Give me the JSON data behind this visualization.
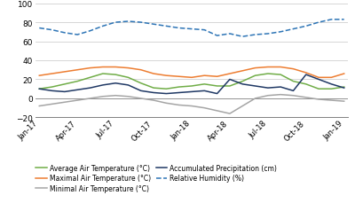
{
  "x_labels": [
    "Jan-17",
    "Apr-17",
    "Jul-17",
    "Oct-17",
    "Jan-18",
    "Apr-18",
    "Jul-18",
    "Oct-18",
    "Jan-19"
  ],
  "tick_positions": [
    0,
    3,
    6,
    9,
    12,
    15,
    18,
    21,
    24
  ],
  "avg_temp_x": [
    0,
    1,
    2,
    3,
    4,
    5,
    6,
    7,
    8,
    9,
    10,
    11,
    12,
    13,
    14,
    15,
    16,
    17,
    18,
    19,
    20,
    21,
    22,
    23,
    24
  ],
  "avg_temp": [
    10,
    12,
    15,
    18,
    22,
    26,
    25,
    22,
    16,
    11,
    10,
    12,
    13,
    15,
    13,
    13,
    18,
    24,
    26,
    25,
    18,
    15,
    10,
    10,
    12
  ],
  "max_temp": [
    24,
    26,
    28,
    30,
    32,
    33,
    33,
    32,
    30,
    26,
    24,
    23,
    22,
    24,
    23,
    26,
    29,
    32,
    33,
    33,
    31,
    27,
    22,
    22,
    26
  ],
  "min_temp": [
    -8,
    -6,
    -4,
    -2,
    0,
    2,
    3,
    2,
    0,
    -2,
    -5,
    -7,
    -8,
    -10,
    -13,
    -16,
    -8,
    0,
    3,
    4,
    3,
    1,
    -1,
    -2,
    -3
  ],
  "precip": [
    10,
    8,
    7,
    9,
    11,
    14,
    16,
    14,
    8,
    6,
    5,
    6,
    7,
    8,
    5,
    20,
    15,
    13,
    11,
    12,
    8,
    25,
    20,
    15,
    11
  ],
  "humidity_x": [
    0,
    1,
    2,
    3,
    4,
    5,
    6,
    7,
    8,
    9,
    10,
    11,
    12,
    13,
    14,
    15,
    16,
    17,
    18,
    19,
    20,
    21,
    22,
    23,
    24
  ],
  "humidity": [
    74,
    72,
    69,
    67,
    71,
    76,
    80,
    81,
    80,
    78,
    76,
    74,
    73,
    72,
    66,
    68,
    65,
    67,
    68,
    70,
    73,
    76,
    80,
    83,
    83
  ],
  "avg_color": "#70ad47",
  "max_color": "#ed7d31",
  "min_color": "#a5a5a5",
  "precip_color": "#1f3864",
  "humidity_color": "#2e75b6",
  "ylim": [
    -20,
    100
  ],
  "yticks": [
    -20,
    0,
    20,
    40,
    60,
    80,
    100
  ],
  "legend_labels": [
    "Average Air Temperature (°C)",
    "Maximal Air Temperature (°C)",
    "Minimal Air Temperature (°C)",
    "Accumulated Precipitation (cm)",
    "Relative Humidity (%)"
  ]
}
